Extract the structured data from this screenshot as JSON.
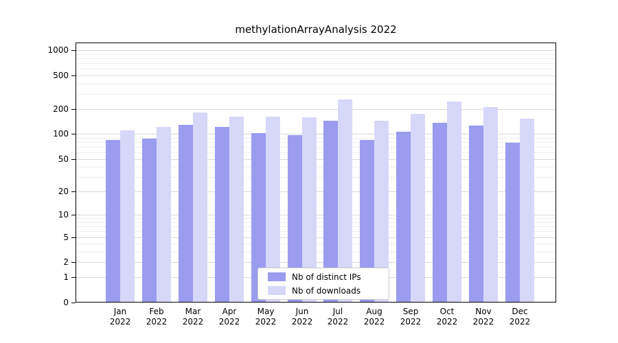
{
  "chart_data": {
    "type": "bar",
    "title": "methylationArrayAnalysis 2022",
    "categories": [
      "Jan",
      "Feb",
      "Mar",
      "Apr",
      "May",
      "Jun",
      "Jul",
      "Aug",
      "Sep",
      "Oct",
      "Nov",
      "Dec"
    ],
    "category_year": "2022",
    "series": [
      {
        "name": "Nb of distinct IPs",
        "color": "#9b9bef",
        "values": [
          85,
          88,
          128,
          122,
          103,
          96,
          145,
          85,
          107,
          135,
          125,
          78
        ]
      },
      {
        "name": "Nb of downloads",
        "color": "#d7d7f9",
        "values": [
          110,
          122,
          180,
          160,
          160,
          158,
          260,
          145,
          175,
          245,
          208,
          152
        ]
      }
    ],
    "yticks": [
      0,
      1,
      2,
      5,
      10,
      20,
      50,
      100,
      200,
      500,
      1000
    ],
    "minor_gridlines": [
      3,
      4,
      6,
      7,
      8,
      9,
      30,
      40,
      60,
      70,
      80,
      90,
      300,
      400,
      600,
      700,
      800,
      900
    ],
    "scale": "log1p",
    "ylim": [
      0,
      1100
    ],
    "grid": true,
    "legend_position": "lower center",
    "xlabel": "",
    "ylabel": ""
  },
  "colors": {
    "grid_major": "#d9d9d9",
    "grid_minor": "#eeeeee",
    "axis": "#000000",
    "background": "#ffffff"
  }
}
